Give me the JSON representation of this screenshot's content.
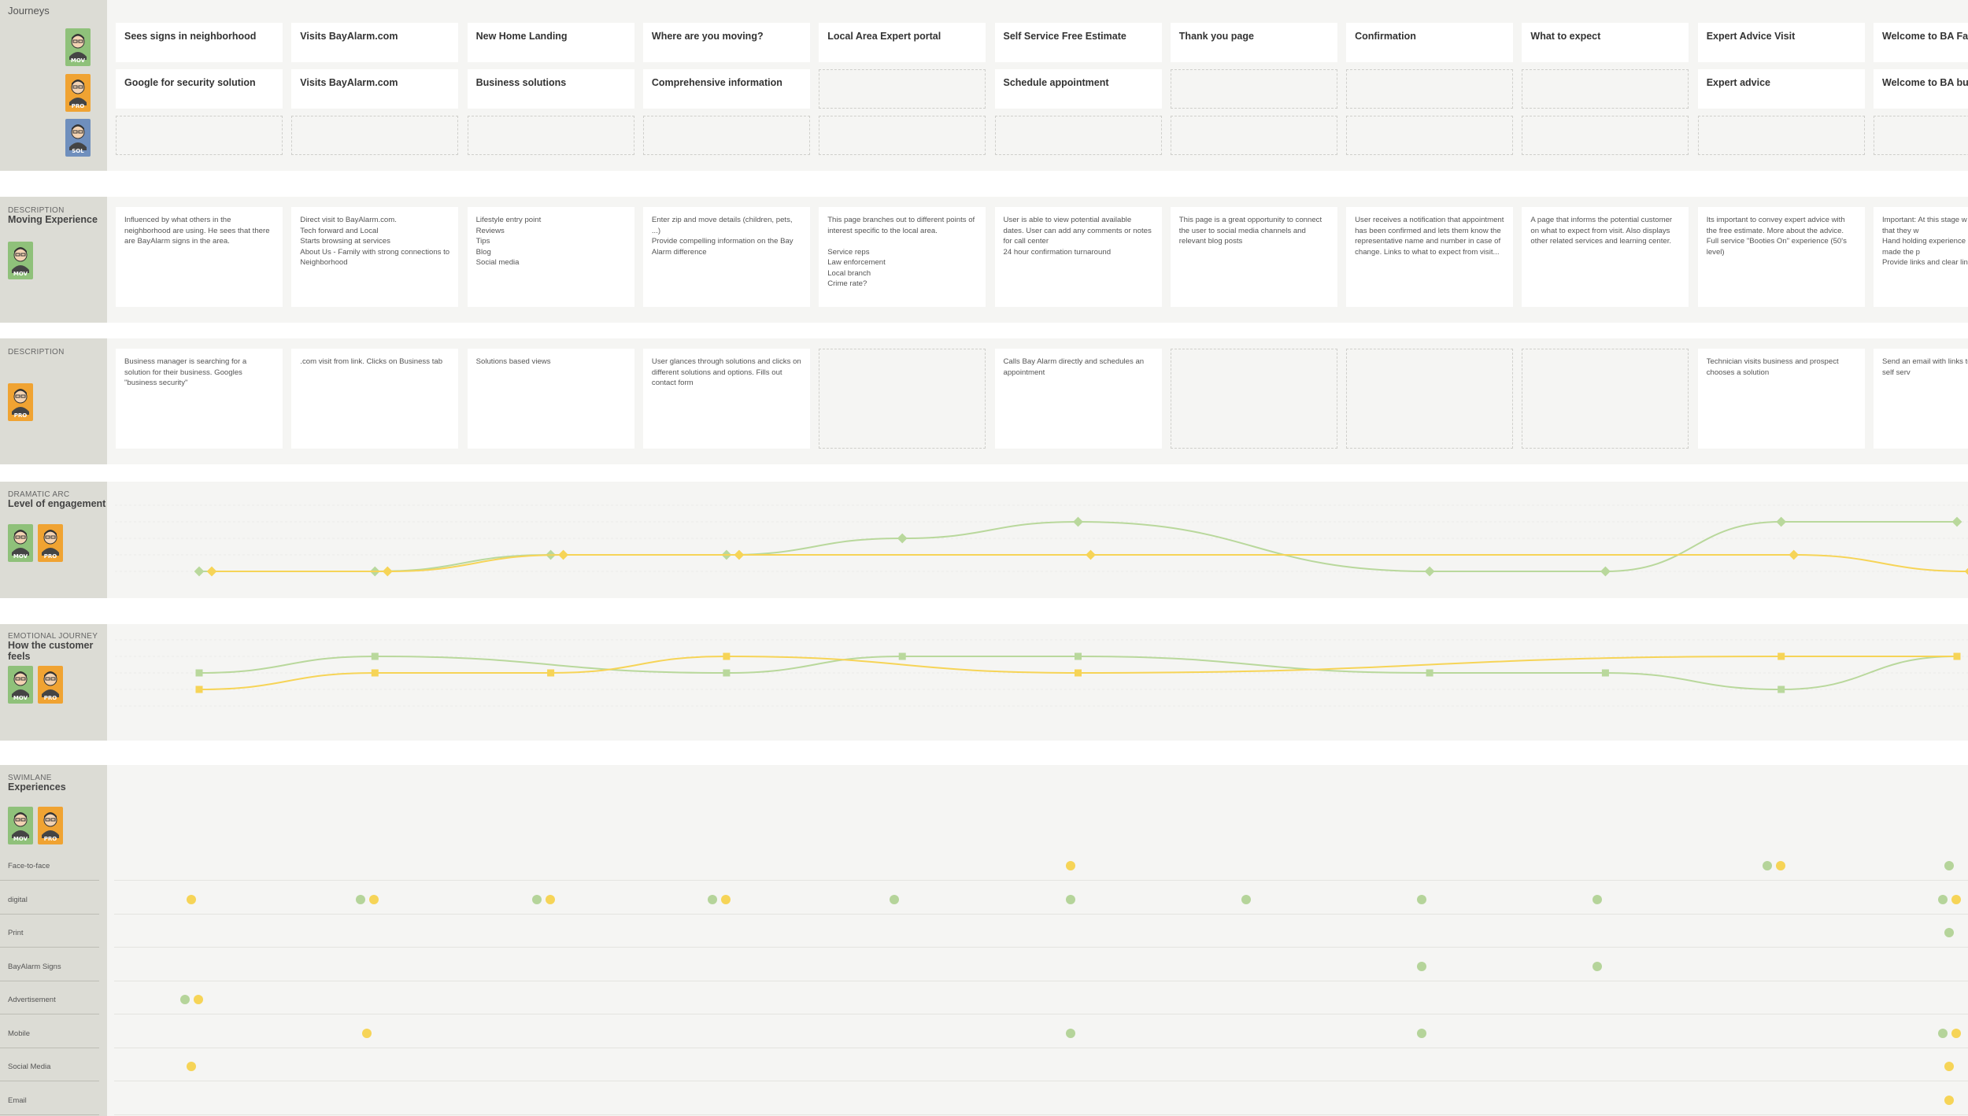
{
  "page": {
    "title": "Journeys"
  },
  "personas": {
    "mov": {
      "tag": "MOV",
      "color": "#8fc17a"
    },
    "pro": {
      "tag": "PRO",
      "color": "#f0a332"
    },
    "sol": {
      "tag": "SOL",
      "color": "#6f8fbd"
    }
  },
  "stages": [
    {
      "mov": "Sees signs in neighborhood",
      "pro": "Google for security solution"
    },
    {
      "mov": "Visits BayAlarm.com",
      "pro": "Visits BayAlarm.com"
    },
    {
      "mov": "New Home Landing",
      "pro": "Business solutions"
    },
    {
      "mov": "Where are you moving?",
      "pro": "Comprehensive information"
    },
    {
      "mov": "Local Area Expert portal",
      "pro": ""
    },
    {
      "mov": "Self Service Free Estimate",
      "pro": "Schedule appointment"
    },
    {
      "mov": "Thank you page",
      "pro": ""
    },
    {
      "mov": "Confirmation",
      "pro": ""
    },
    {
      "mov": "What to expect",
      "pro": ""
    },
    {
      "mov": "Expert Advice Visit",
      "pro": "Expert advice"
    },
    {
      "mov": "Welcome to BA Family Page)",
      "pro": "Welcome to BA busin"
    }
  ],
  "moving_section": {
    "label": "DESCRIPTION",
    "title": "Moving Experience"
  },
  "moving_descriptions": [
    "Influenced by what others in the neighborhood are using. He sees that there are BayAlarm signs in the area.",
    "Direct visit to BayAlarm.com.\nTech forward and Local\nStarts browsing at services\nAbout Us - Family with strong connections to Neighborhood",
    "Lifestyle entry point\nReviews\nTips\nBlog\nSocial media",
    "Enter zip and move details (children, pets, ...)\nProvide compelling information on the Bay Alarm difference",
    "This page branches out to different points of interest specific to the local area.\n\nService reps\nLaw enforcement\nLocal branch\nCrime rate?",
    "User is able to view potential available dates. User can add any comments or notes for call center\n24 hour confirmation turnaround",
    "This page is a great opportunity to connect the user to social media channels and relevant blog posts",
    "User receives a notification that appointment has been confirmed and lets them know the representative name and number in case of change. Links to what to expect from visit...",
    "A page that informs the potential customer on what to expect from visit. Also displays other related services and learning center.",
    "Its important to convey expert advice with the free estimate. More about the advice.\nFull service \"Booties On\" experience (50's level)",
    "Important: At this stage w to the customer that they w\nHand holding experience c customer they made the p\nProvide links and clear lin channels"
  ],
  "pro_section": {
    "label": "DESCRIPTION"
  },
  "pro_descriptions": [
    "Business manager is searching for a solution for their business. Googles \"business security\"",
    ".com visit from link. Clicks on Business tab",
    "Solutions based views",
    "User glances through solutions and clicks on different solutions and options. Fills out contact form",
    "",
    "Calls Bay Alarm directly and schedules an appointment",
    "",
    "",
    "",
    "Technician visits business and prospect chooses a solution",
    "Send an email with links to online that allows self serv"
  ],
  "engagement_section": {
    "label": "DRAMATIC ARC",
    "title": "Level of engagement"
  },
  "emotional_section": {
    "label": "EMOTIONAL JOURNEY",
    "title": "How the customer feels"
  },
  "swimlane_section": {
    "label": "SWIMLANE",
    "title": "Experiences"
  },
  "chart_data": [
    {
      "type": "line",
      "name": "engagement",
      "x": [
        0,
        1,
        2,
        3,
        4,
        5,
        6,
        7,
        8,
        9,
        10
      ],
      "series": [
        {
          "key": "mov",
          "color": "#b9d89c",
          "values": [
            1,
            1,
            2,
            2,
            3,
            4,
            null,
            1,
            1,
            4,
            4
          ]
        },
        {
          "key": "pro",
          "color": "#f6d457",
          "values": [
            1,
            1,
            2,
            2,
            null,
            2,
            null,
            null,
            null,
            2,
            1
          ]
        }
      ]
    },
    {
      "type": "line",
      "name": "emotion",
      "x": [
        0,
        1,
        2,
        3,
        4,
        5,
        6,
        7,
        8,
        9,
        10
      ],
      "series": [
        {
          "key": "mov",
          "color": "#b9d89c",
          "values": [
            3,
            4,
            null,
            3,
            4,
            4,
            null,
            3,
            3,
            2,
            4
          ]
        },
        {
          "key": "pro",
          "color": "#f6d457",
          "values": [
            2,
            3,
            3,
            4,
            null,
            3,
            null,
            null,
            null,
            4,
            4
          ]
        }
      ]
    }
  ],
  "swimlanes": [
    {
      "label": "Face-to-face",
      "mov": [
        9,
        10
      ],
      "pro": [
        5,
        9
      ]
    },
    {
      "label": "digital",
      "mov": [
        1,
        2,
        3,
        4,
        5,
        6,
        7,
        8,
        10
      ],
      "pro": [
        0,
        1,
        2,
        3,
        10
      ]
    },
    {
      "label": "Print",
      "mov": [
        10
      ],
      "pro": []
    },
    {
      "label": "BayAlarm Signs",
      "mov": [
        7,
        8
      ],
      "pro": []
    },
    {
      "label": "Advertisement",
      "mov": [
        0
      ],
      "pro": [
        0
      ]
    },
    {
      "label": "Mobile",
      "mov": [
        5,
        7,
        10
      ],
      "pro": [
        1,
        10
      ]
    },
    {
      "label": "Social Media",
      "mov": [],
      "pro": [
        0,
        10
      ]
    },
    {
      "label": "Email",
      "mov": [],
      "pro": [
        10
      ]
    }
  ]
}
